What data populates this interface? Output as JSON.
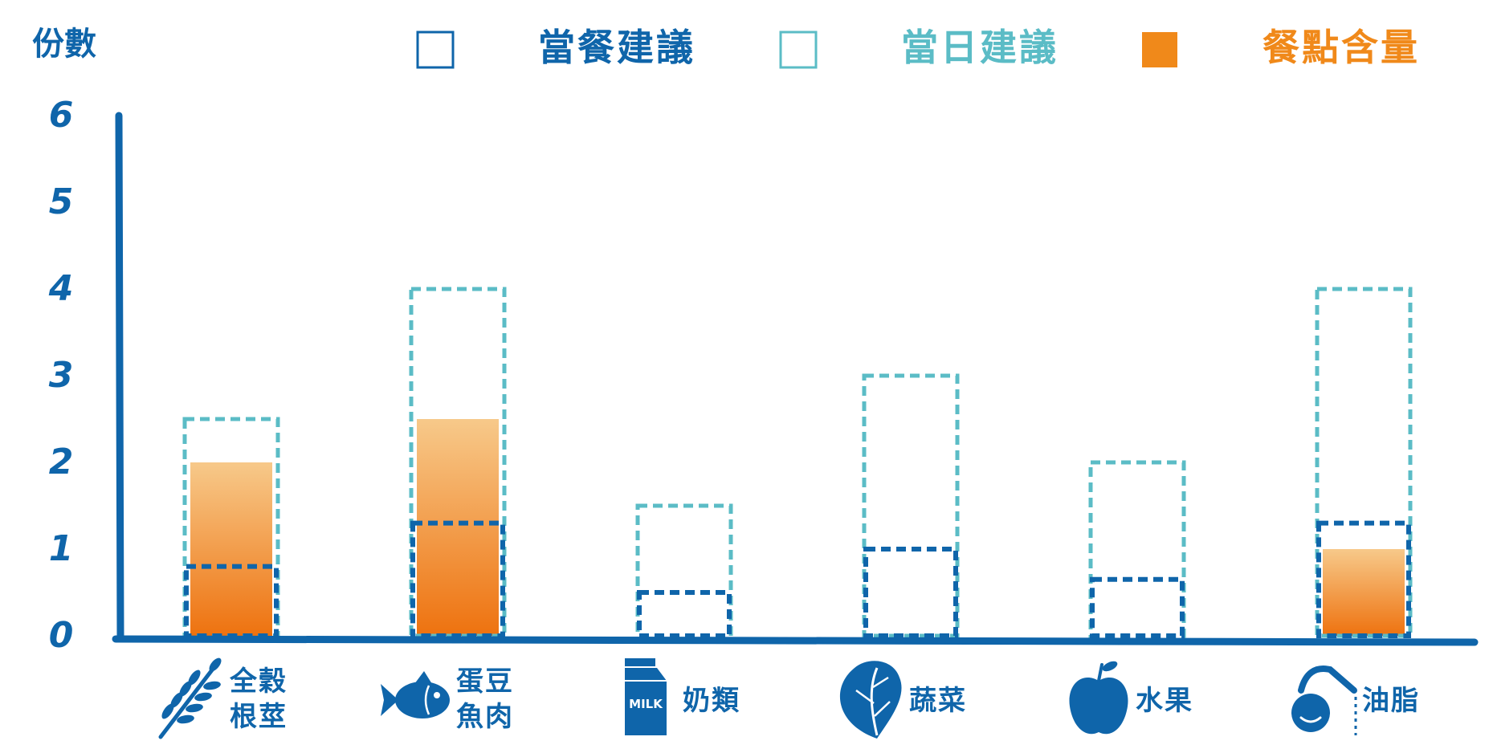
{
  "colors": {
    "axis": "#0f65aa",
    "meal": "#0f65aa",
    "daily": "#5bbcc6",
    "content_light": "#f7c98a",
    "content_dark": "#ee720f",
    "legend_content": "#f0891a",
    "text": "#0f65aa"
  },
  "chart_data": {
    "type": "bar",
    "ylabel": "份數",
    "ylim": [
      0,
      6
    ],
    "yticks": [
      "0",
      "1",
      "2",
      "3",
      "4",
      "5",
      "6"
    ],
    "grid": false,
    "legend_position": "top",
    "legend": [
      {
        "key": "meal",
        "label": "當餐建議",
        "style": "outline",
        "color": "#0f65aa"
      },
      {
        "key": "daily",
        "label": "當日建議",
        "style": "outline",
        "color": "#5bbcc6"
      },
      {
        "key": "content",
        "label": "餐點含量",
        "style": "filled",
        "color": "#f0891a"
      }
    ],
    "categories": [
      {
        "id": "grains",
        "label_lines": [
          "全穀",
          "根莖"
        ],
        "icon": "wheat-icon"
      },
      {
        "id": "protein",
        "label_lines": [
          "蛋豆",
          "魚肉"
        ],
        "icon": "fish-icon"
      },
      {
        "id": "dairy",
        "label_lines": [
          "奶類"
        ],
        "icon": "milk-carton-icon",
        "icon_text": "MILK"
      },
      {
        "id": "vegetables",
        "label_lines": [
          "蔬菜"
        ],
        "icon": "vegetable-leaf-icon"
      },
      {
        "id": "fruits",
        "label_lines": [
          "水果"
        ],
        "icon": "apple-icon"
      },
      {
        "id": "oils",
        "label_lines": [
          "油脂"
        ],
        "icon": "oil-bottle-icon"
      }
    ],
    "series": [
      {
        "name": "當餐建議",
        "key": "meal",
        "values": [
          0.8,
          1.3,
          0.5,
          1.0,
          0.65,
          1.3
        ]
      },
      {
        "name": "當日建議",
        "key": "daily",
        "values": [
          2.5,
          4.0,
          1.5,
          3.0,
          2.0,
          4.0
        ]
      },
      {
        "name": "餐點含量",
        "key": "content",
        "values": [
          2.0,
          2.5,
          0,
          0,
          0,
          1.0
        ]
      }
    ]
  }
}
